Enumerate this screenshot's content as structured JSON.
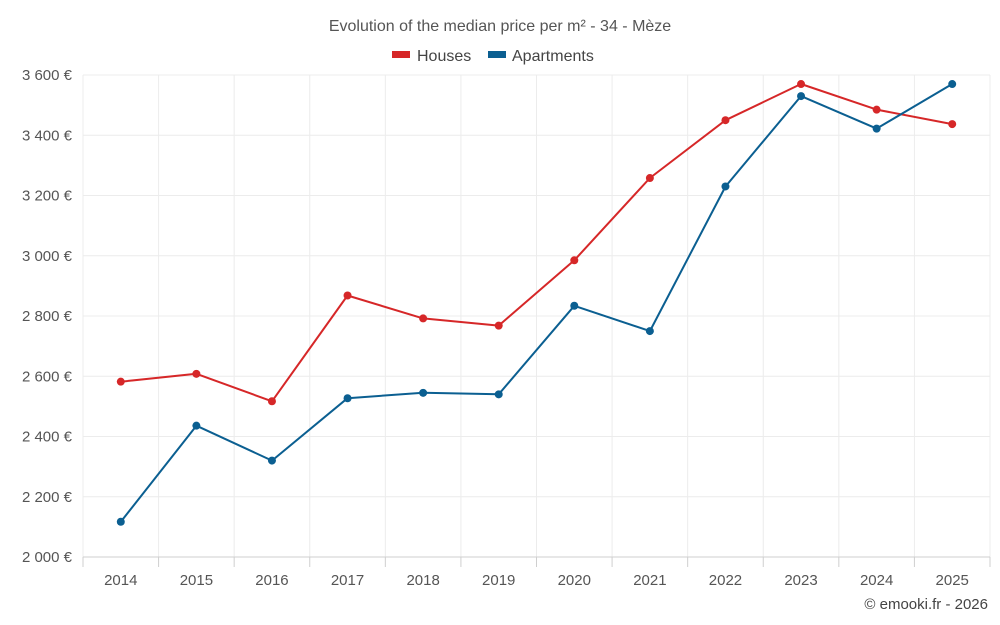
{
  "chart_data": {
    "type": "line",
    "title": "Evolution of the median price per m² - 34 - Mèze",
    "categories": [
      "2014",
      "2015",
      "2016",
      "2017",
      "2018",
      "2019",
      "2020",
      "2021",
      "2022",
      "2023",
      "2024",
      "2025"
    ],
    "series": [
      {
        "name": "Houses",
        "color": "#d62728",
        "values": [
          2582,
          2608,
          2517,
          2868,
          2792,
          2768,
          2985,
          3258,
          3450,
          3570,
          3485,
          3437
        ]
      },
      {
        "name": "Apartments",
        "color": "#0b5f91",
        "values": [
          2117,
          2436,
          2320,
          2527,
          2545,
          2540,
          2834,
          2750,
          3230,
          3530,
          3422,
          3570
        ]
      }
    ],
    "ylim": [
      2000,
      3600
    ],
    "yticks": [
      2000,
      2200,
      2400,
      2600,
      2800,
      3000,
      3200,
      3400,
      3600
    ],
    "ytick_labels": [
      "2 000 €",
      "2 200 €",
      "2 400 €",
      "2 600 €",
      "2 800 €",
      "3 000 €",
      "3 200 €",
      "3 400 €",
      "3 600 €"
    ],
    "legend_position": "top-center",
    "grid": true
  },
  "credit": "© emooki.fr - 2026"
}
